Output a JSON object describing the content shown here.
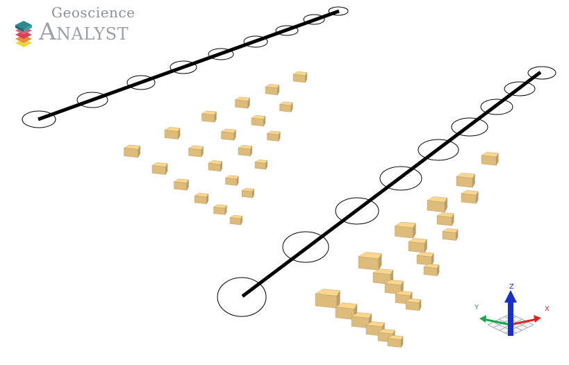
{
  "logo": {
    "line1": "Geoscience",
    "line2": "Analyst"
  },
  "triad": {
    "x_label": "X",
    "y_label": "Y",
    "z_label": "Z",
    "x_color": "#d62626",
    "y_color": "#1aa64a",
    "z_color": "#1830c8"
  },
  "colors": {
    "block": "#f0cc86",
    "borehole": "#000000",
    "logo_stack": [
      "#2f8a8f",
      "#d6415a",
      "#ef8a3c",
      "#e9d640"
    ]
  }
}
